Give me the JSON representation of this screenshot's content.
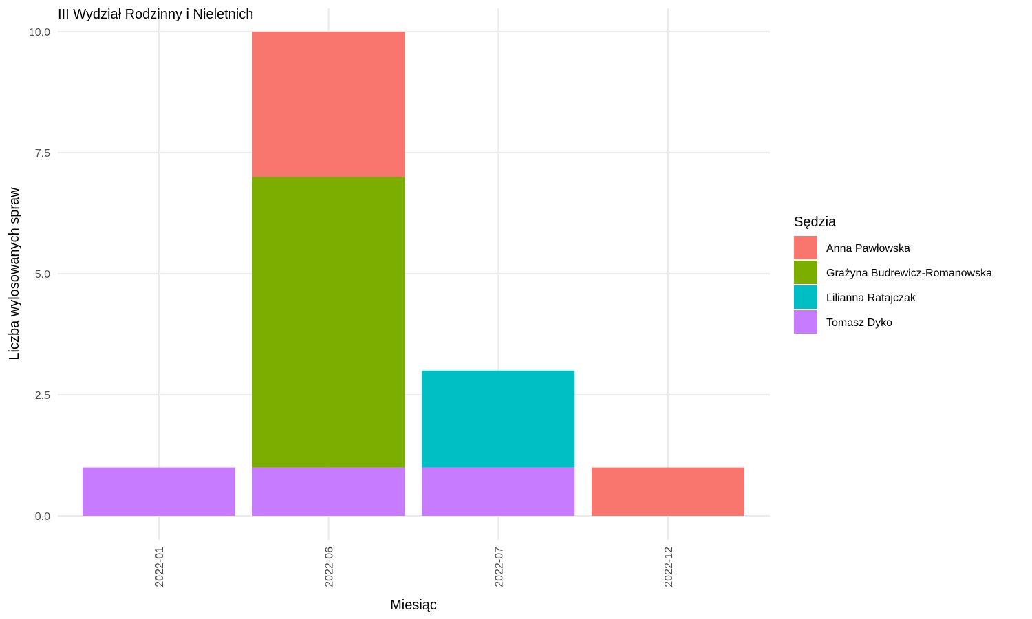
{
  "chart_data": {
    "type": "bar",
    "stacked": true,
    "title": "III Wydział Rodzinny i Nieletnich",
    "xlabel": "Miesiąc",
    "ylabel": "Liczba wylosowanych spraw",
    "categories": [
      "2022-01",
      "2022-06",
      "2022-07",
      "2022-12"
    ],
    "series": [
      {
        "name": "Tomasz Dyko",
        "color": "#C77CFF",
        "values": [
          1,
          1,
          1,
          0
        ]
      },
      {
        "name": "Grażyna Budrewicz-Romanowska",
        "color": "#7CAE00",
        "values": [
          0,
          6,
          0,
          0
        ]
      },
      {
        "name": "Lilianna Ratajczak",
        "color": "#00BFC4",
        "values": [
          0,
          0,
          2,
          0
        ]
      },
      {
        "name": "Anna Pawłowska",
        "color": "#F8766D",
        "values": [
          0,
          3,
          0,
          1
        ]
      }
    ],
    "ylim": [
      0,
      10
    ],
    "yticks": [
      "0.0",
      "2.5",
      "5.0",
      "7.5",
      "10.0"
    ],
    "ytick_values": [
      0,
      2.5,
      5,
      7.5,
      10
    ],
    "grid": true,
    "legend": {
      "title": "Sędzia",
      "placement": "right",
      "order": [
        "Anna Pawłowska",
        "Grażyna Budrewicz-Romanowska",
        "Lilianna Ratajczak",
        "Tomasz Dyko"
      ]
    }
  }
}
